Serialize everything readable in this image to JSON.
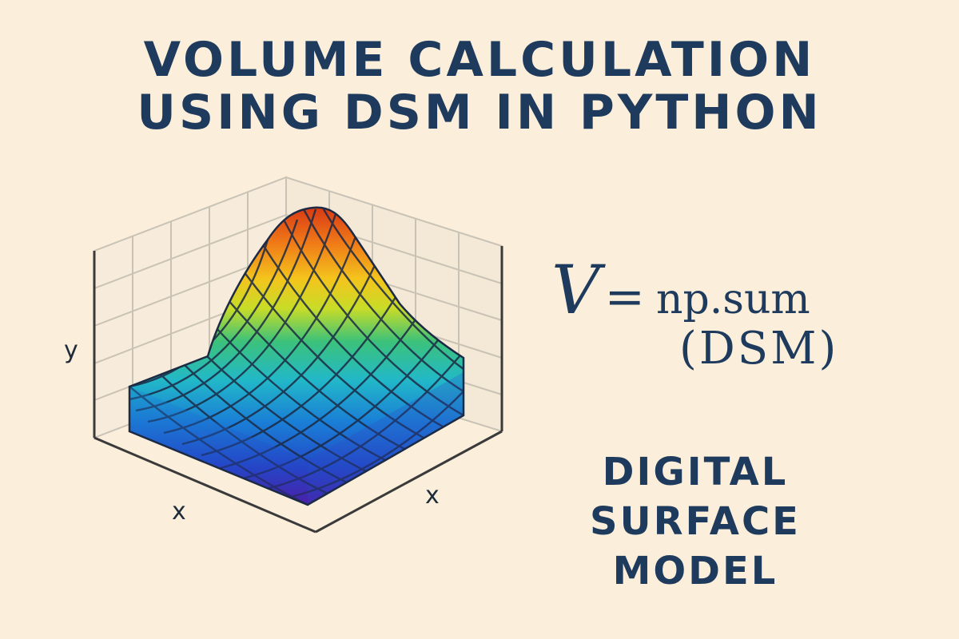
{
  "title": {
    "line1": "VOLUME CALCULATION",
    "line2": "USING DSM IN PYTHON"
  },
  "plot": {
    "ylabel": "y",
    "xlabel_left": "x",
    "xlabel_right": "x",
    "colormap": [
      "#4a1fa8",
      "#2347c8",
      "#1a7fd6",
      "#22b8c8",
      "#3cc27a",
      "#c8dc28",
      "#f4c41c",
      "#f07a18",
      "#d83a14"
    ]
  },
  "formula": {
    "lhs": "V",
    "equals": "=",
    "function": "np.sum",
    "argument": "(DSM)"
  },
  "caption": {
    "line1": "DIGITAL",
    "line2": "SURFACE",
    "line3": "MODEL"
  }
}
